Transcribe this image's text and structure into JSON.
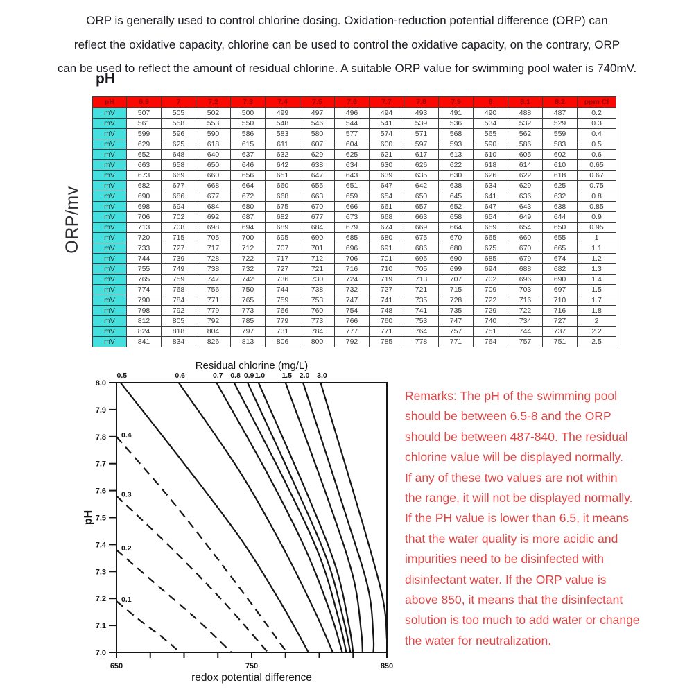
{
  "intro": {
    "lines": [
      "ORP is generally used to control chlorine dosing. Oxidation-reduction potential difference (ORP) can",
      "reflect the oxidative capacity, chlorine can be used to control the oxidative capacity, on the contrary, ORP",
      "can be used to reflect the amount of residual chlorine. A suitable ORP value for swimming pool water is 740mV."
    ]
  },
  "table": {
    "caption": "pH",
    "axis_label": "ORP/mv",
    "row_label": "mV",
    "header": {
      "corner": "pH",
      "ph_values": [
        "6.9",
        "7",
        "7.2",
        "7.3",
        "7.4",
        "7.5",
        "7.6",
        "7.7",
        "7.8",
        "7.9",
        "8",
        "8.1",
        "8.2"
      ],
      "unit_col": "ppm Cl"
    },
    "rows": [
      {
        "mv": [
          507,
          505,
          502,
          500,
          499,
          497,
          496,
          494,
          493,
          491,
          490,
          488,
          487
        ],
        "ppm": "0.2"
      },
      {
        "mv": [
          561,
          558,
          553,
          550,
          548,
          546,
          544,
          541,
          539,
          536,
          534,
          532,
          529
        ],
        "ppm": "0.3"
      },
      {
        "mv": [
          599,
          596,
          590,
          586,
          583,
          580,
          577,
          574,
          571,
          568,
          565,
          562,
          559
        ],
        "ppm": "0.4"
      },
      {
        "mv": [
          629,
          625,
          618,
          615,
          611,
          607,
          604,
          600,
          597,
          593,
          590,
          586,
          583
        ],
        "ppm": "0.5"
      },
      {
        "mv": [
          652,
          648,
          640,
          637,
          632,
          629,
          625,
          621,
          617,
          613,
          610,
          605,
          602
        ],
        "ppm": "0.6"
      },
      {
        "mv": [
          663,
          658,
          650,
          646,
          642,
          638,
          634,
          630,
          626,
          622,
          618,
          614,
          610
        ],
        "ppm": "0.65"
      },
      {
        "mv": [
          673,
          669,
          660,
          656,
          651,
          647,
          643,
          639,
          635,
          630,
          626,
          622,
          618
        ],
        "ppm": "0.67"
      },
      {
        "mv": [
          682,
          677,
          668,
          664,
          660,
          655,
          651,
          647,
          642,
          638,
          634,
          629,
          625
        ],
        "ppm": "0.75"
      },
      {
        "mv": [
          690,
          686,
          677,
          672,
          668,
          663,
          659,
          654,
          650,
          645,
          641,
          636,
          632
        ],
        "ppm": "0.8"
      },
      {
        "mv": [
          698,
          694,
          684,
          680,
          675,
          670,
          666,
          661,
          657,
          652,
          647,
          643,
          638
        ],
        "ppm": "0.85"
      },
      {
        "mv": [
          706,
          702,
          692,
          687,
          682,
          677,
          673,
          668,
          663,
          658,
          654,
          649,
          644
        ],
        "ppm": "0.9"
      },
      {
        "mv": [
          713,
          708,
          698,
          694,
          689,
          684,
          679,
          674,
          669,
          664,
          659,
          654,
          650
        ],
        "ppm": "0.95"
      },
      {
        "mv": [
          720,
          715,
          705,
          700,
          695,
          690,
          685,
          680,
          675,
          670,
          665,
          660,
          655
        ],
        "ppm": "1"
      },
      {
        "mv": [
          733,
          727,
          717,
          712,
          707,
          701,
          696,
          691,
          686,
          680,
          675,
          670,
          665
        ],
        "ppm": "1.1"
      },
      {
        "mv": [
          744,
          739,
          728,
          722,
          717,
          712,
          706,
          701,
          695,
          690,
          685,
          679,
          674
        ],
        "ppm": "1.2"
      },
      {
        "mv": [
          755,
          749,
          738,
          732,
          727,
          721,
          716,
          710,
          705,
          699,
          694,
          688,
          682
        ],
        "ppm": "1.3"
      },
      {
        "mv": [
          765,
          759,
          747,
          742,
          736,
          730,
          724,
          719,
          713,
          707,
          702,
          696,
          690
        ],
        "ppm": "1.4"
      },
      {
        "mv": [
          774,
          768,
          756,
          750,
          744,
          738,
          732,
          727,
          721,
          715,
          709,
          703,
          697
        ],
        "ppm": "1.5"
      },
      {
        "mv": [
          790,
          784,
          771,
          765,
          759,
          753,
          747,
          741,
          735,
          728,
          722,
          716,
          710
        ],
        "ppm": "1.7"
      },
      {
        "mv": [
          798,
          792,
          779,
          773,
          766,
          760,
          754,
          748,
          741,
          735,
          729,
          722,
          716
        ],
        "ppm": "1.8"
      },
      {
        "mv": [
          812,
          805,
          792,
          785,
          779,
          773,
          766,
          760,
          753,
          747,
          740,
          734,
          727
        ],
        "ppm": "2"
      },
      {
        "mv": [
          824,
          818,
          804,
          797,
          731,
          784,
          777,
          771,
          764,
          757,
          751,
          744,
          737
        ],
        "ppm": "2.2"
      },
      {
        "mv": [
          841,
          834,
          826,
          813,
          806,
          800,
          792,
          785,
          778,
          771,
          764,
          757,
          751
        ],
        "ppm": "2.5"
      }
    ]
  },
  "chart_data": {
    "type": "line",
    "title": "Residual chlorine (mg/L)",
    "xlabel": "redox potential difference",
    "ylabel": "pH",
    "xlim": [
      650,
      850
    ],
    "ylim": [
      7.0,
      8.0
    ],
    "x_ticks": [
      650,
      675,
      700,
      725,
      750,
      775,
      800,
      825,
      850
    ],
    "x_tick_labeled": [
      650,
      750,
      850
    ],
    "y_ticks": [
      8.0,
      7.9,
      7.8,
      7.7,
      7.6,
      7.5,
      7.4,
      7.3,
      7.2,
      7.1,
      7.0
    ],
    "grid": false,
    "series": [
      {
        "name": "0.1",
        "style": "dashed",
        "label_side": "left",
        "points": [
          [
            650,
            7.19
          ],
          [
            667,
            7.12
          ],
          [
            683,
            7.06
          ],
          [
            697,
            7.0
          ]
        ]
      },
      {
        "name": "0.2",
        "style": "dashed",
        "label_side": "left",
        "points": [
          [
            650,
            7.38
          ],
          [
            680,
            7.25
          ],
          [
            710,
            7.12
          ],
          [
            735,
            7.0
          ]
        ]
      },
      {
        "name": "0.3",
        "style": "dashed",
        "label_side": "left",
        "points": [
          [
            650,
            7.58
          ],
          [
            688,
            7.4
          ],
          [
            727,
            7.2
          ],
          [
            762,
            7.0
          ]
        ]
      },
      {
        "name": "0.4",
        "style": "dashed",
        "label_side": "left",
        "points": [
          [
            650,
            7.8
          ],
          [
            693,
            7.55
          ],
          [
            738,
            7.26
          ],
          [
            776,
            7.0
          ]
        ]
      },
      {
        "name": "0.5",
        "style": "solid",
        "label_side": "top",
        "points": [
          [
            653,
            8.0
          ],
          [
            700,
            7.7
          ],
          [
            742,
            7.42
          ],
          [
            772,
            7.18
          ],
          [
            792,
            7.0
          ]
        ]
      },
      {
        "name": "0.6",
        "style": "solid",
        "label_side": "top",
        "points": [
          [
            696,
            8.0
          ],
          [
            740,
            7.68
          ],
          [
            772,
            7.4
          ],
          [
            796,
            7.16
          ],
          [
            810,
            7.0
          ]
        ]
      },
      {
        "name": "0.7",
        "style": "solid",
        "label_side": "top",
        "points": [
          [
            724,
            8.0
          ],
          [
            762,
            7.66
          ],
          [
            790,
            7.38
          ],
          [
            808,
            7.15
          ],
          [
            817,
            7.0
          ]
        ]
      },
      {
        "name": "0.8",
        "style": "solid",
        "label_side": "top",
        "points": [
          [
            737,
            8.0
          ],
          [
            774,
            7.64
          ],
          [
            800,
            7.36
          ],
          [
            814,
            7.13
          ],
          [
            820,
            7.0
          ]
        ]
      },
      {
        "name": "0.9",
        "style": "solid",
        "label_side": "top",
        "points": [
          [
            747,
            8.0
          ],
          [
            782,
            7.62
          ],
          [
            806,
            7.34
          ],
          [
            818,
            7.12
          ],
          [
            823,
            7.0
          ]
        ]
      },
      {
        "name": "1.0",
        "style": "solid",
        "label_side": "top",
        "points": [
          [
            755,
            8.0
          ],
          [
            790,
            7.6
          ],
          [
            812,
            7.32
          ],
          [
            822,
            7.1
          ],
          [
            825,
            7.0
          ]
        ]
      },
      {
        "name": "1.5",
        "style": "solid",
        "label_side": "top",
        "points": [
          [
            775,
            8.0
          ],
          [
            807,
            7.56
          ],
          [
            825,
            7.28
          ],
          [
            831,
            7.08
          ],
          [
            832,
            7.0
          ]
        ]
      },
      {
        "name": "2.0",
        "style": "solid",
        "label_side": "top",
        "points": [
          [
            788,
            8.0
          ],
          [
            819,
            7.52
          ],
          [
            836,
            7.24
          ],
          [
            840,
            7.06
          ],
          [
            840,
            7.0
          ]
        ]
      },
      {
        "name": "3.0",
        "style": "solid",
        "label_side": "top",
        "points": [
          [
            801,
            8.0
          ],
          [
            832,
            7.48
          ],
          [
            847,
            7.2
          ],
          [
            850,
            7.05
          ],
          [
            850,
            7.0
          ]
        ]
      }
    ]
  },
  "remarks": {
    "lines": [
      "Remarks: The pH of the swimming pool",
      "should be between 6.5-8 and the ORP",
      "should be between 487-840. The residual",
      "chlorine value will be displayed normally.",
      "If any of these two values are not within",
      "the range, it will not be displayed normally.",
      "If the PH value is lower than 6.5, it means",
      "that the water quality is more acidic and",
      "impurities need to be disinfected with",
      "disinfectant water. If the ORP value is",
      "above 850, it means that the disinfectant",
      "solution is too much to add water or change",
      "the water for neutralization."
    ]
  },
  "colors": {
    "header_bg": "#fa0902",
    "header_text": "#8f0b0b",
    "mv_bg": "#45e0dd",
    "remarks_text": "#e04545",
    "ink": "#151515"
  }
}
